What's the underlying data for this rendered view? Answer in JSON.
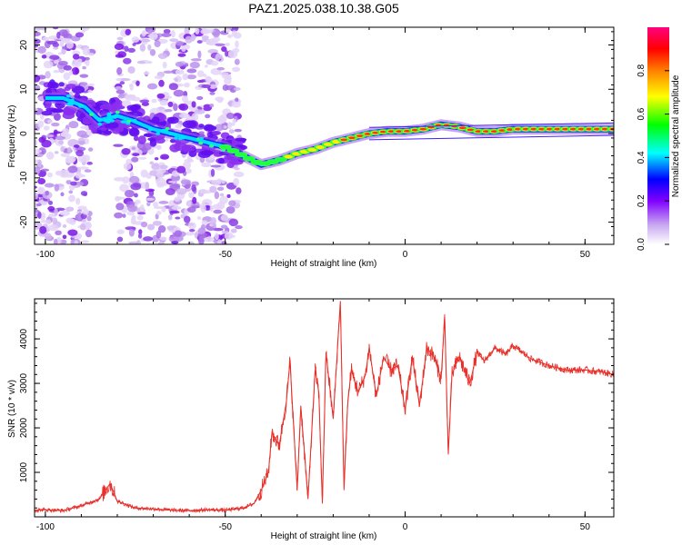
{
  "title": "PAZ1.2025.038.10.38.G05",
  "chart_data": [
    {
      "type": "heatmap",
      "xlabel": "Height of straight line (km)",
      "ylabel": "Frequency (Hz)",
      "xlim": [
        -103,
        58
      ],
      "ylim": [
        -25,
        24
      ],
      "xticks": [
        -100,
        -50,
        0,
        50
      ],
      "yticks": [
        -20,
        -10,
        0,
        10,
        20
      ],
      "ridge": [
        {
          "x": -95,
          "f": 8
        },
        {
          "x": -89,
          "f": 6
        },
        {
          "x": -85,
          "f": 3
        },
        {
          "x": -80,
          "f": 4
        },
        {
          "x": -76,
          "f": 3
        },
        {
          "x": -70,
          "f": 1
        },
        {
          "x": -65,
          "f": 0
        },
        {
          "x": -60,
          "f": -1
        },
        {
          "x": -55,
          "f": -2
        },
        {
          "x": -50,
          "f": -3
        },
        {
          "x": -45,
          "f": -5
        },
        {
          "x": -40,
          "f": -7
        },
        {
          "x": -35,
          "f": -6
        },
        {
          "x": -30,
          "f": -4.5
        },
        {
          "x": -25,
          "f": -3.5
        },
        {
          "x": -20,
          "f": -2
        },
        {
          "x": -15,
          "f": -1
        },
        {
          "x": -10,
          "f": 0
        },
        {
          "x": -5,
          "f": 0.5
        },
        {
          "x": 0,
          "f": 0.5
        },
        {
          "x": 5,
          "f": 1
        },
        {
          "x": 10,
          "f": 2
        },
        {
          "x": 15,
          "f": 1.5
        },
        {
          "x": 20,
          "f": 0.5
        },
        {
          "x": 25,
          "f": 0.5
        },
        {
          "x": 30,
          "f": 1
        },
        {
          "x": 40,
          "f": 1
        },
        {
          "x": 50,
          "f": 1
        },
        {
          "x": 58,
          "f": 1
        }
      ],
      "colorbar": {
        "label": "Normalized spectral amplitude",
        "ticks": [
          "0.0",
          "0.2",
          "0.4",
          "0.6",
          "0.8"
        ],
        "range": [
          0,
          1
        ],
        "colors": [
          "#ffffff",
          "#c8a8f0",
          "#8000ff",
          "#0000ff",
          "#00ffff",
          "#00ff00",
          "#ffff00",
          "#ff8000",
          "#ff0000",
          "#ff0080"
        ]
      }
    },
    {
      "type": "line",
      "xlabel": "Height of straight line (km)",
      "ylabel": "SNR (10 * v/v)",
      "xlim": [
        -103,
        58
      ],
      "ylim": [
        0,
        4900
      ],
      "xticks": [
        -100,
        -50,
        0,
        50
      ],
      "yticks": [
        1000,
        2000,
        3000,
        4000
      ],
      "color": "#e8302a",
      "series": [
        {
          "x": [
            -103,
            -100,
            -95,
            -90,
            -85,
            -82,
            -80,
            -75,
            -70,
            -65,
            -60,
            -55,
            -50,
            -45,
            -42,
            -40,
            -38,
            -37,
            -35,
            -33,
            -32,
            -30,
            -29,
            -27,
            -25,
            -24,
            -23,
            -22,
            -20,
            -19,
            -18,
            -17,
            -16,
            -15,
            -13,
            -11,
            -10,
            -8,
            -6,
            -4,
            -2,
            0,
            2,
            4,
            6,
            8,
            10,
            11,
            12,
            13,
            15,
            18,
            20,
            22,
            25,
            28,
            30,
            35,
            40,
            45,
            50,
            55,
            58
          ],
          "y": [
            150,
            160,
            140,
            250,
            400,
            750,
            350,
            200,
            180,
            150,
            140,
            160,
            150,
            200,
            300,
            600,
            1000,
            1900,
            1600,
            2600,
            3500,
            600,
            2500,
            400,
            3300,
            2800,
            300,
            3700,
            2200,
            3500,
            4850,
            600,
            2500,
            3300,
            2800,
            3200,
            3800,
            2700,
            3600,
            3300,
            3400,
            2400,
            3600,
            2500,
            3800,
            3600,
            3100,
            4500,
            1400,
            3200,
            3600,
            3000,
            3700,
            3500,
            3800,
            3650,
            3850,
            3550,
            3400,
            3300,
            3300,
            3250,
            3200
          ]
        }
      ]
    }
  ]
}
